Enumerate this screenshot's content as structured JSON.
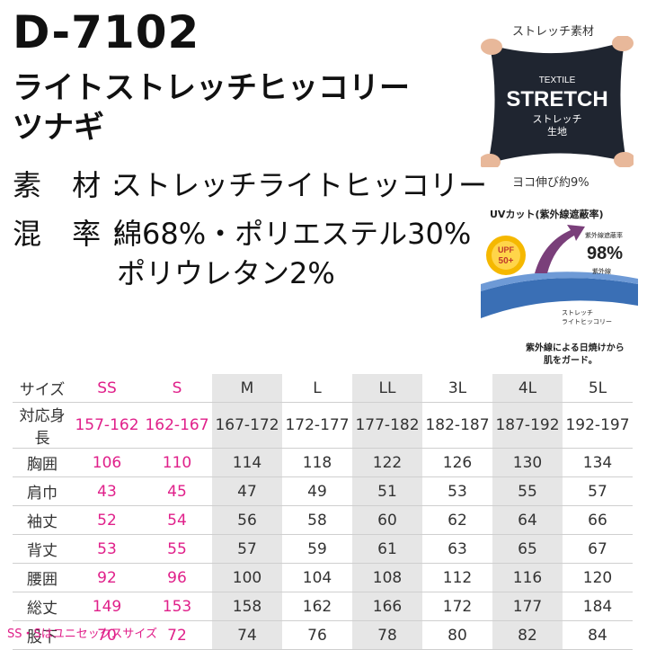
{
  "product": {
    "code": "D-7102",
    "name_line1": "ライトストレッチヒッコリー",
    "name_line2": "ツナギ"
  },
  "specs": {
    "material_label": "素 材:",
    "material_value": "ストレッチライトヒッコリー",
    "blend_label": "混 率:",
    "blend_value": "綿68%・ポリエステル30%",
    "blend_value_2": "ポリウレタン2%"
  },
  "stretch": {
    "caption": "ストレッチ素材",
    "fabric_text_1": "TEXTILE",
    "fabric_text_2": "STRETCH",
    "fabric_text_3": "ストレッチ",
    "fabric_text_4": "生地",
    "yoko_caption": "ヨコ伸び約9%"
  },
  "uv": {
    "title": "UVカット(紫外線遮蔽率)",
    "badge_line1": "UPF",
    "badge_line2": "50+",
    "rate_label": "紫外線遮蔽率",
    "rate_value": "98%",
    "uv_label": "紫外線",
    "fabric_label_1": "ストレッチ",
    "fabric_label_2": "ライトヒッコリー",
    "note_1": "紫外線による日焼けから",
    "note_2": "肌をガード。",
    "colors": {
      "badge": "#f5b800",
      "fabric": "#3a6fb5",
      "arrow": "#7a3f7a"
    }
  },
  "size_table": {
    "sizes_label": "サイズ",
    "sizes": [
      "SS",
      "S",
      "M",
      "L",
      "LL",
      "3L",
      "4L",
      "5L"
    ],
    "rows": [
      {
        "label": "対応身長",
        "values": [
          "157-162",
          "162-167",
          "167-172",
          "172-177",
          "177-182",
          "182-187",
          "187-192",
          "192-197"
        ]
      },
      {
        "label": "胸囲",
        "values": [
          "106",
          "110",
          "114",
          "118",
          "122",
          "126",
          "130",
          "134"
        ]
      },
      {
        "label": "肩巾",
        "values": [
          "43",
          "45",
          "47",
          "49",
          "51",
          "53",
          "55",
          "57"
        ]
      },
      {
        "label": "袖丈",
        "values": [
          "52",
          "54",
          "56",
          "58",
          "60",
          "62",
          "64",
          "66"
        ]
      },
      {
        "label": "背丈",
        "values": [
          "53",
          "55",
          "57",
          "59",
          "61",
          "63",
          "65",
          "67"
        ]
      },
      {
        "label": "腰囲",
        "values": [
          "92",
          "96",
          "100",
          "104",
          "108",
          "112",
          "116",
          "120"
        ]
      },
      {
        "label": "総丈",
        "values": [
          "149",
          "153",
          "158",
          "162",
          "166",
          "172",
          "177",
          "184"
        ]
      },
      {
        "label": "股下",
        "values": [
          "70",
          "72",
          "74",
          "76",
          "78",
          "80",
          "82",
          "84"
        ]
      }
    ],
    "note": "SS・Sはユニセックスサイズ",
    "colors": {
      "unisex": "#e0208a",
      "shade": "#e6e6e6"
    }
  }
}
